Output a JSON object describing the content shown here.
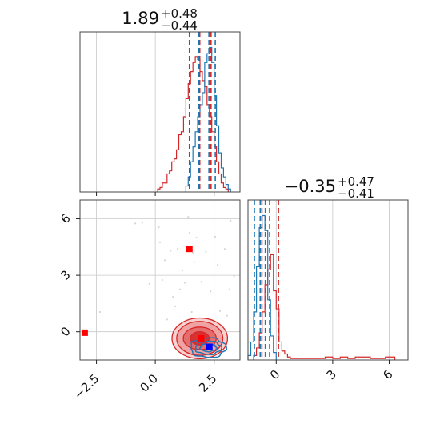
{
  "chart_data": {
    "type": "corner",
    "colors": {
      "red": "#d62728",
      "blue": "#1f77b4",
      "marker_red": "#ff0000",
      "marker_blue": "#0000ff",
      "grid": "#c8c8c8"
    },
    "panels": [
      {
        "id": "marginal_x",
        "type": "histogram",
        "title": {
          "value": "1.89",
          "plus": "+0.48",
          "minus": "−0.44"
        },
        "xlim": [
          -3.2,
          3.6
        ],
        "grid": true,
        "series": [
          {
            "color": "red",
            "bins": [
              [
                0.1,
                0.2,
                0.02
              ],
              [
                0.2,
                0.3,
                0.03
              ],
              [
                0.3,
                0.4,
                0.06
              ],
              [
                0.4,
                0.5,
                0.06
              ],
              [
                0.5,
                0.6,
                0.12
              ],
              [
                0.6,
                0.7,
                0.14
              ],
              [
                0.7,
                0.8,
                0.2
              ],
              [
                0.8,
                0.9,
                0.22
              ],
              [
                0.9,
                1.0,
                0.28
              ],
              [
                1.0,
                1.1,
                0.38
              ],
              [
                1.1,
                1.2,
                0.4
              ],
              [
                1.2,
                1.3,
                0.5
              ],
              [
                1.3,
                1.4,
                0.62
              ],
              [
                1.4,
                1.5,
                0.72
              ],
              [
                1.5,
                1.6,
                0.8
              ],
              [
                1.6,
                1.7,
                0.86
              ],
              [
                1.7,
                1.8,
                0.9
              ],
              [
                1.8,
                1.9,
                0.88
              ],
              [
                1.9,
                2.0,
                0.8
              ],
              [
                2.0,
                2.1,
                0.74
              ],
              [
                2.1,
                2.2,
                0.7
              ],
              [
                2.2,
                2.3,
                0.58
              ],
              [
                2.3,
                2.4,
                0.5
              ],
              [
                2.4,
                2.5,
                0.4
              ],
              [
                2.5,
                2.6,
                0.3
              ],
              [
                2.6,
                2.7,
                0.2
              ],
              [
                2.7,
                2.8,
                0.12
              ],
              [
                2.8,
                2.9,
                0.06
              ],
              [
                2.9,
                3.0,
                0.03
              ],
              [
                3.0,
                3.1,
                0.02
              ]
            ],
            "quantiles": [
              1.45,
              1.89,
              2.37
            ]
          },
          {
            "color": "blue",
            "bins": [
              [
                1.3,
                1.4,
                0.04
              ],
              [
                1.4,
                1.5,
                0.1
              ],
              [
                1.5,
                1.6,
                0.2
              ],
              [
                1.6,
                1.7,
                0.3
              ],
              [
                1.7,
                1.8,
                0.4
              ],
              [
                1.8,
                1.9,
                0.5
              ],
              [
                1.9,
                2.0,
                0.58
              ],
              [
                2.0,
                2.1,
                0.66
              ],
              [
                2.1,
                2.2,
                0.86
              ],
              [
                2.2,
                2.3,
                0.92
              ],
              [
                2.3,
                2.4,
                0.96
              ],
              [
                2.4,
                2.5,
                0.86
              ],
              [
                2.5,
                2.6,
                0.64
              ],
              [
                2.6,
                2.7,
                0.44
              ],
              [
                2.7,
                2.8,
                0.26
              ],
              [
                2.8,
                2.9,
                0.16
              ],
              [
                2.9,
                3.0,
                0.1
              ],
              [
                3.0,
                3.1,
                0.05
              ],
              [
                3.1,
                3.2,
                0.02
              ]
            ],
            "quantiles": [
              1.85,
              2.28,
              2.55
            ]
          }
        ]
      },
      {
        "id": "marginal_y",
        "type": "histogram",
        "title": {
          "value": "−0.35",
          "plus": "+0.47",
          "minus": "−0.41"
        },
        "xlim": [
          -1.5,
          7.0
        ],
        "xticks": [
          0,
          3,
          6
        ],
        "xtick_labels": [
          "0",
          "3",
          "6"
        ],
        "grid": true,
        "series": [
          {
            "color": "red",
            "bins": [
              [
                -1.2,
                -1.05,
                0.03
              ],
              [
                -1.05,
                -0.9,
                0.08
              ],
              [
                -0.9,
                -0.75,
                0.18
              ],
              [
                -0.75,
                -0.6,
                0.32
              ],
              [
                -0.6,
                -0.45,
                0.5
              ],
              [
                -0.45,
                -0.3,
                0.6
              ],
              [
                -0.3,
                -0.15,
                0.7
              ],
              [
                -0.15,
                0.0,
                0.46
              ],
              [
                0.0,
                0.15,
                0.34
              ],
              [
                0.15,
                0.3,
                0.12
              ],
              [
                0.3,
                0.45,
                0.06
              ],
              [
                0.45,
                0.6,
                0.04
              ],
              [
                0.6,
                0.75,
                0.02
              ],
              [
                0.75,
                2.6,
                0.01
              ],
              [
                2.6,
                3.0,
                0.02
              ],
              [
                3.0,
                3.4,
                0.01
              ],
              [
                3.4,
                3.8,
                0.02
              ],
              [
                3.8,
                4.2,
                0.01
              ],
              [
                4.2,
                5.0,
                0.02
              ],
              [
                5.0,
                5.8,
                0.01
              ],
              [
                5.8,
                6.3,
                0.02
              ]
            ],
            "quantiles": [
              -0.76,
              -0.35,
              0.12
            ]
          },
          {
            "color": "blue",
            "bins": [
              [
                -1.5,
                -1.35,
                0.03
              ],
              [
                -1.35,
                -1.2,
                0.12
              ],
              [
                -1.2,
                -1.05,
                0.32
              ],
              [
                -1.05,
                -0.9,
                0.62
              ],
              [
                -0.9,
                -0.75,
                0.88
              ],
              [
                -0.75,
                -0.6,
                0.96
              ],
              [
                -0.6,
                -0.45,
                0.86
              ],
              [
                -0.45,
                -0.3,
                0.4
              ],
              [
                -0.3,
                -0.15,
                0.16
              ],
              [
                -0.15,
                0.0,
                0.05
              ]
            ],
            "quantiles": [
              -1.16,
              -0.85,
              -0.58
            ]
          }
        ]
      },
      {
        "id": "joint",
        "type": "contour_scatter",
        "xlim": [
          -3.2,
          3.6
        ],
        "ylim": [
          -1.5,
          7.0
        ],
        "xticks": [
          -2.5,
          0.0,
          2.5
        ],
        "xtick_labels": [
          "−2.5",
          "0.0",
          "2.5"
        ],
        "yticks": [
          0,
          3,
          6
        ],
        "ytick_labels": [
          "0",
          "3",
          "6"
        ],
        "grid": true,
        "red_contours": [
          {
            "cx": 1.89,
            "cy": -0.35,
            "rx": [
              0.4,
              0.7,
              0.98,
              1.18
            ],
            "ry": [
              0.35,
              0.6,
              0.9,
              1.08
            ]
          }
        ],
        "blue_contours": [
          {
            "cx": 2.25,
            "cy": -0.85,
            "rx": [
              0.35,
              0.55,
              0.75
            ],
            "ry": [
              0.2,
              0.35,
              0.52
            ]
          }
        ],
        "scatter": [
          [
            -2.35,
            1.05
          ],
          [
            -0.85,
            5.75
          ],
          [
            -0.55,
            5.8
          ],
          [
            -0.25,
            2.55
          ],
          [
            0.15,
            5.55
          ],
          [
            0.2,
            4.75
          ],
          [
            0.3,
            2.75
          ],
          [
            0.4,
            3.8
          ],
          [
            0.5,
            0.65
          ],
          [
            0.65,
            4.3
          ],
          [
            0.75,
            1.85
          ],
          [
            0.85,
            1.35
          ],
          [
            0.95,
            4.4
          ],
          [
            1.05,
            2.25
          ],
          [
            1.15,
            3.25
          ],
          [
            1.25,
            2.6
          ],
          [
            1.4,
            6.1
          ],
          [
            1.45,
            5.25
          ],
          [
            1.55,
            1.05
          ],
          [
            1.6,
            4.2
          ],
          [
            1.65,
            3.7
          ],
          [
            1.75,
            5.0
          ],
          [
            1.8,
            0.25
          ],
          [
            1.95,
            2.65
          ],
          [
            2.05,
            0.55
          ],
          [
            2.15,
            4.25
          ],
          [
            2.35,
            2.15
          ],
          [
            2.55,
            5.05
          ],
          [
            2.65,
            3.55
          ],
          [
            2.75,
            1.1
          ],
          [
            2.95,
            4.4
          ],
          [
            3.05,
            0.85
          ],
          [
            3.15,
            2.25
          ],
          [
            3.2,
            5.9
          ],
          [
            3.35,
            2.95
          ]
        ],
        "markers": [
          {
            "x": -3.0,
            "y": -0.05,
            "color": "marker_red"
          },
          {
            "x": 1.45,
            "y": 4.4,
            "color": "marker_red"
          },
          {
            "x": 1.95,
            "y": -0.35,
            "color": "marker_red"
          },
          {
            "x": 2.3,
            "y": -0.8,
            "color": "marker_blue"
          }
        ]
      }
    ]
  }
}
